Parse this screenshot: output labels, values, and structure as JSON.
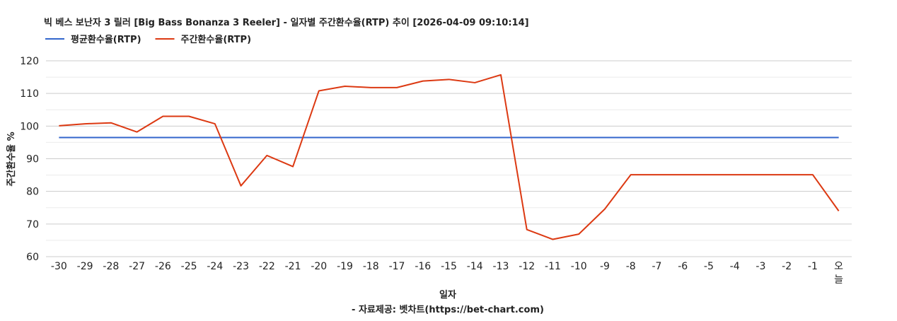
{
  "chart_data": {
    "type": "line",
    "title": "빅 베스 보난자 3 릴러 [Big Bass Bonanza 3 Reeler] - 일자별 주간환수율(RTP) 추이 [2026-04-09 09:10:14]",
    "xlabel": "일자",
    "ylabel": "주간환수율 %",
    "caption": "- 자료제공: 벳차트(https://bet-chart.com)",
    "categories": [
      "-30",
      "-29",
      "-28",
      "-27",
      "-26",
      "-25",
      "-24",
      "-23",
      "-22",
      "-21",
      "-20",
      "-19",
      "-18",
      "-17",
      "-16",
      "-15",
      "-14",
      "-13",
      "-12",
      "-11",
      "-10",
      "-9",
      "-8",
      "-7",
      "-6",
      "-5",
      "-4",
      "-3",
      "-2",
      "-1",
      "오늘"
    ],
    "ylim": [
      60,
      120
    ],
    "yticks": [
      60,
      70,
      80,
      90,
      100,
      110,
      120
    ],
    "grid": true,
    "legend_position": "top-left",
    "series": [
      {
        "name": "평균환수율(RTP)",
        "color": "#3366cc",
        "values": [
          96.5,
          96.5,
          96.5,
          96.5,
          96.5,
          96.5,
          96.5,
          96.5,
          96.5,
          96.5,
          96.5,
          96.5,
          96.5,
          96.5,
          96.5,
          96.5,
          96.5,
          96.5,
          96.5,
          96.5,
          96.5,
          96.5,
          96.5,
          96.5,
          96.5,
          96.5,
          96.5,
          96.5,
          96.5,
          96.5,
          96.5
        ]
      },
      {
        "name": "주간환수율(RTP)",
        "color": "#dc3912",
        "values": [
          100.1,
          100.7,
          101.0,
          98.2,
          103.0,
          103.0,
          100.7,
          81.7,
          91.0,
          87.6,
          110.8,
          112.2,
          111.8,
          111.8,
          113.8,
          114.3,
          113.3,
          115.7,
          68.3,
          65.3,
          66.9,
          74.6,
          85.1,
          85.1,
          85.1,
          85.1,
          85.1,
          85.1,
          85.1,
          85.1,
          74.0
        ]
      }
    ]
  }
}
